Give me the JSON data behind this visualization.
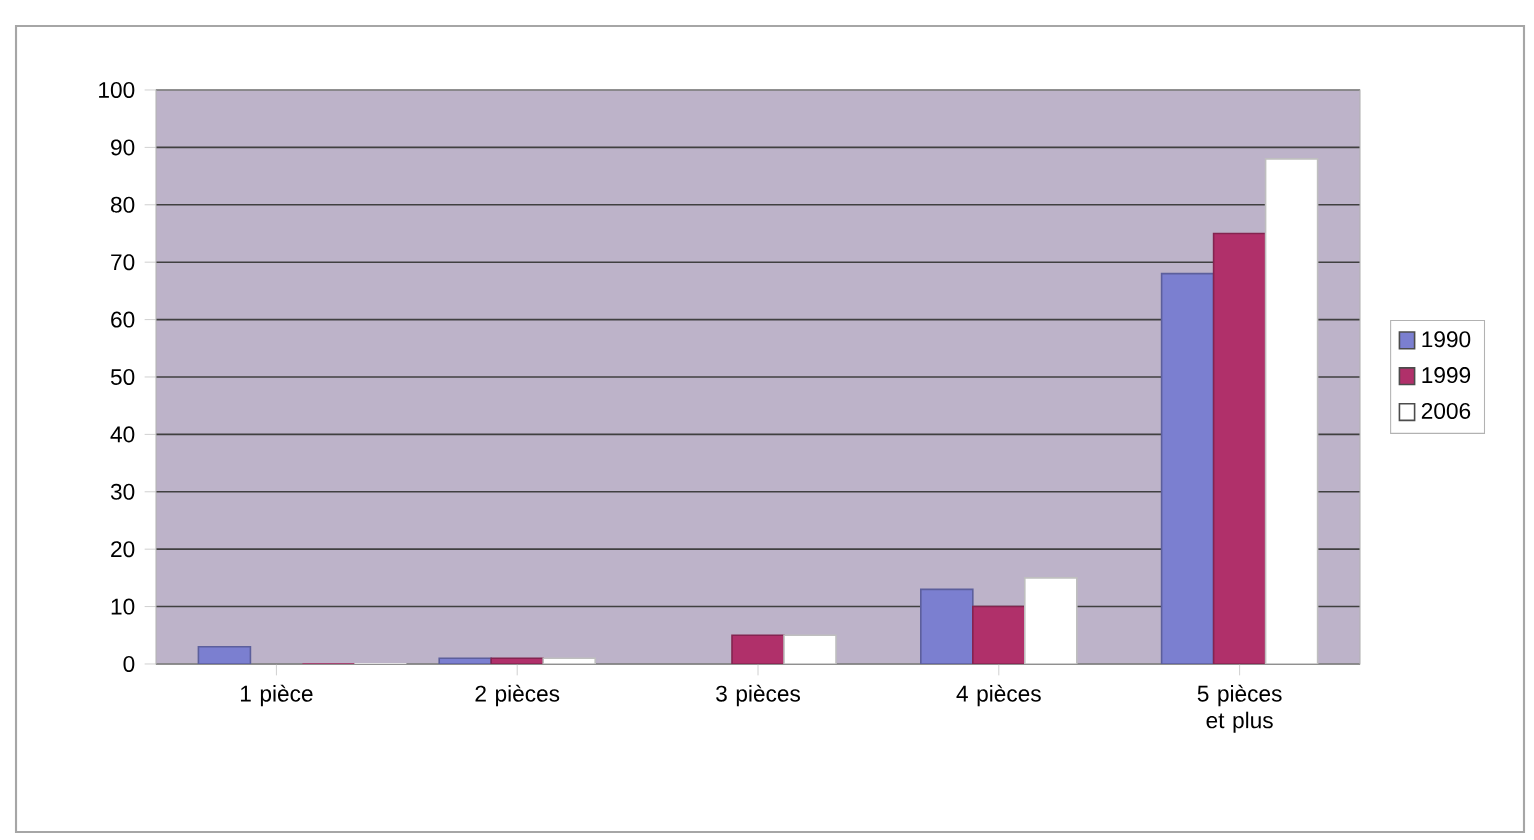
{
  "chart_data": {
    "type": "bar",
    "categories": [
      "1 pièce",
      "2 pièces",
      "3 pièces",
      "4 pièces",
      "5 pièces et plus"
    ],
    "series": [
      {
        "name": "1990",
        "color": "#7b7fd0",
        "values": [
          3,
          1,
          0,
          13,
          68
        ]
      },
      {
        "name": "1999",
        "color": "#b0306a",
        "values": [
          0,
          1,
          5,
          10,
          75
        ]
      },
      {
        "name": "2006",
        "color": "#ffffff",
        "values": [
          0,
          1,
          5,
          15,
          88
        ]
      }
    ],
    "ylim": [
      0,
      100
    ],
    "yticks": [
      0,
      10,
      20,
      30,
      40,
      50,
      60,
      70,
      80,
      90,
      100
    ],
    "grid": "y",
    "legend": "right"
  }
}
